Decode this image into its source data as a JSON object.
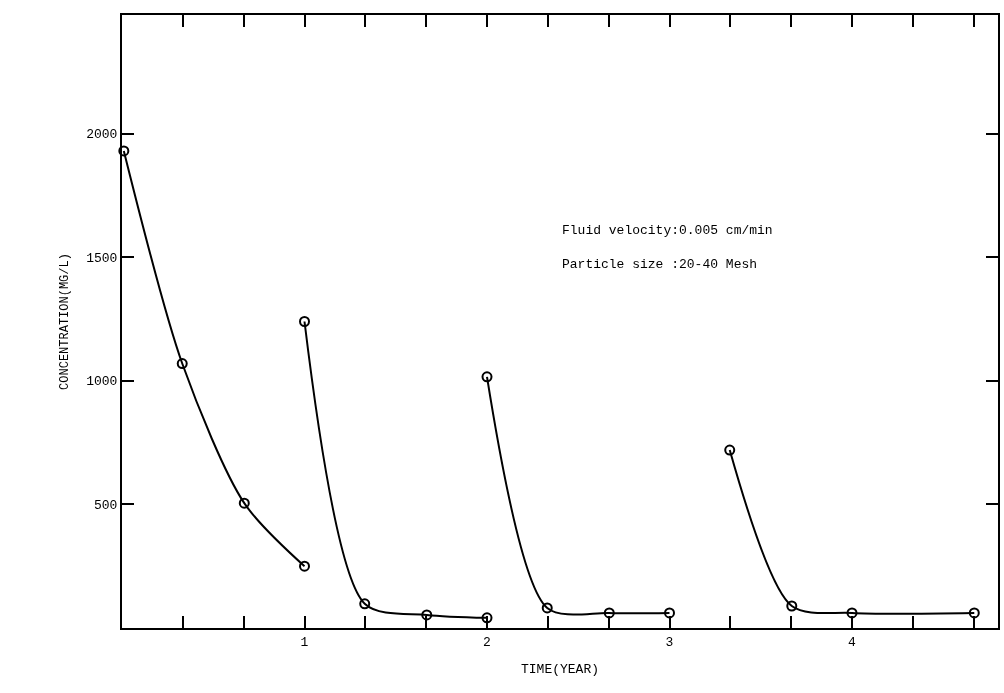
{
  "chart_data": {
    "type": "line",
    "xlabel": "TIME(YEAR)",
    "ylabel": "CONCENTRATION(MG/L)",
    "series": [
      {
        "color": "#000000",
        "x": [
          0.01,
          0.33,
          0.67,
          1.0
        ],
        "values": [
          1930,
          1070,
          505,
          250
        ]
      },
      {
        "color": "#000000",
        "x": [
          1.0,
          1.33,
          1.67,
          2.0
        ],
        "values": [
          1240,
          98,
          53,
          41
        ]
      },
      {
        "color": "#000000",
        "x": [
          2.0,
          2.33,
          2.67,
          3.0
        ],
        "values": [
          1016,
          81,
          61,
          61
        ]
      },
      {
        "color": "#000000",
        "x": [
          3.33,
          3.67,
          4.0,
          4.67
        ],
        "values": [
          720,
          89,
          61,
          61
        ]
      }
    ],
    "xlim": [
      0,
      4.8
    ],
    "ylim": [
      0,
      2480
    ],
    "xticks": [
      {
        "value": 0.333,
        "label": null
      },
      {
        "value": 0.667,
        "label": null
      },
      1,
      {
        "value": 1.333,
        "label": null
      },
      {
        "value": 1.667,
        "label": null
      },
      2,
      {
        "value": 2.333,
        "label": null
      },
      {
        "value": 2.667,
        "label": null
      },
      3,
      {
        "value": 3.333,
        "label": null
      },
      {
        "value": 3.667,
        "label": null
      },
      4,
      {
        "value": 4.333,
        "label": null
      },
      {
        "value": 4.667,
        "label": null
      }
    ],
    "yticks": [
      500,
      1000,
      1500,
      2000
    ],
    "annotations": [
      "Fluid velocity:0.005 cm/min\nParticle size :20-40 Mesh"
    ],
    "marker": "circle",
    "line_style": "solid"
  }
}
